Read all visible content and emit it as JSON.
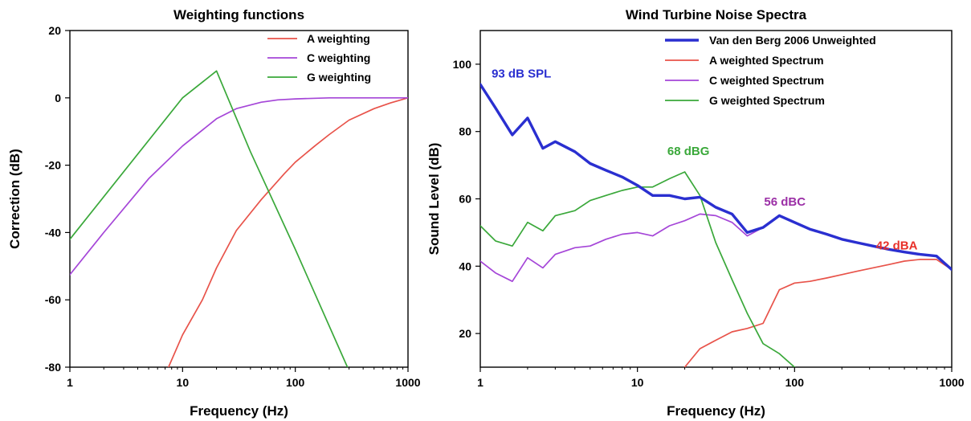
{
  "chart_data": [
    {
      "type": "line",
      "title": "Weighting functions",
      "xlabel": "Frequency (Hz)",
      "ylabel": "Correction (dB)",
      "xscale": "log",
      "xlim": [
        1,
        1000
      ],
      "ylim": [
        -80,
        20
      ],
      "xticks": [
        1,
        10,
        100,
        1000
      ],
      "xtick_labels": [
        "1",
        "10",
        "100",
        "1000"
      ],
      "yticks": [
        20,
        0,
        -20,
        -40,
        -60,
        -80
      ],
      "ytick_labels": [
        "20",
        "0",
        "-20",
        "-40",
        "-60",
        "-80"
      ],
      "legend_position": "top-right",
      "grid": false,
      "series": [
        {
          "name": "A weighting",
          "color": "#e8534a",
          "x": [
            7.5,
            10,
            15,
            20,
            30,
            50,
            80,
            100,
            150,
            200,
            300,
            500,
            700,
            1000
          ],
          "y": [
            -80,
            -70.4,
            -60,
            -50.5,
            -39.4,
            -30.2,
            -22.5,
            -19.1,
            -14.2,
            -10.9,
            -6.6,
            -3.2,
            -1.5,
            0
          ]
        },
        {
          "name": "C weighting",
          "color": "#a546d8",
          "x": [
            1,
            2,
            5,
            10,
            20,
            30,
            50,
            70,
            100,
            200,
            500,
            1000
          ],
          "y": [
            -52.5,
            -40,
            -24,
            -14.3,
            -6.2,
            -3.2,
            -1.3,
            -0.6,
            -0.3,
            0,
            0,
            0
          ]
        },
        {
          "name": "G weighting",
          "color": "#3aa83a",
          "x": [
            1,
            10,
            20,
            40,
            100,
            290
          ],
          "y": [
            -42,
            0,
            8,
            -16,
            -45,
            -80
          ]
        }
      ]
    },
    {
      "type": "line",
      "title": "Wind Turbine Noise Spectra",
      "xlabel": "Frequency (Hz)",
      "ylabel": "Sound Level (dB)",
      "xscale": "log",
      "xlim": [
        1,
        1000
      ],
      "ylim": [
        10,
        110
      ],
      "xticks": [
        1,
        10,
        100,
        1000
      ],
      "xtick_labels": [
        "1",
        "10",
        "100",
        "1000"
      ],
      "yticks": [
        100,
        80,
        60,
        40,
        20
      ],
      "ytick_labels": [
        "100",
        "80",
        "60",
        "40",
        "20"
      ],
      "legend_position": "top-right",
      "grid": false,
      "series": [
        {
          "name": "Van den Berg 2006 Unweighted",
          "color": "#2a2fd0",
          "x": [
            1,
            1.25,
            1.6,
            2,
            2.5,
            3,
            4,
            5,
            6.3,
            8,
            10,
            12.5,
            16,
            20,
            25,
            31.5,
            40,
            50,
            63,
            80,
            100,
            125,
            160,
            200,
            250,
            315,
            400,
            500,
            630,
            800,
            1000
          ],
          "y": [
            94,
            87,
            79,
            84,
            75,
            77,
            74,
            70.5,
            68.5,
            66.5,
            64,
            61,
            61,
            60,
            60.5,
            57.5,
            55.5,
            50,
            51.5,
            55,
            53,
            51,
            49.5,
            48,
            47,
            46,
            45,
            44.2,
            43.5,
            43,
            39
          ]
        },
        {
          "name": "A weighted Spectrum",
          "color": "#e8534a",
          "x": [
            20,
            25,
            31.5,
            40,
            50,
            63,
            80,
            100,
            125,
            160,
            200,
            250,
            315,
            400,
            500,
            630,
            800,
            1000
          ],
          "y": [
            10,
            15.5,
            18,
            20.5,
            21.5,
            23,
            33,
            35,
            35.5,
            36.5,
            37.5,
            38.5,
            39.5,
            40.5,
            41.5,
            42,
            42,
            39
          ]
        },
        {
          "name": "C weighted Spectrum",
          "color": "#a546d8",
          "x": [
            1,
            1.25,
            1.6,
            2,
            2.5,
            3,
            4,
            5,
            6.3,
            8,
            10,
            12.5,
            16,
            20,
            25,
            31.5,
            40,
            50,
            63,
            80,
            100,
            125,
            160,
            200,
            250,
            315,
            400,
            500,
            630,
            800,
            1000
          ],
          "y": [
            41.5,
            38,
            35.5,
            42.5,
            39.5,
            43.5,
            45.5,
            46,
            48,
            49.5,
            50,
            49,
            52,
            53.5,
            55.5,
            55,
            53,
            49,
            51.5,
            55,
            53,
            51,
            49.5,
            48,
            47,
            46,
            45,
            44.2,
            43.5,
            43,
            39
          ]
        },
        {
          "name": "G weighted Spectrum",
          "color": "#3aa83a",
          "x": [
            1,
            1.25,
            1.6,
            2,
            2.5,
            3,
            4,
            5,
            6.3,
            8,
            10,
            12.5,
            16,
            20,
            25,
            31.5,
            40,
            50,
            63,
            80,
            100
          ],
          "y": [
            52,
            47.5,
            46,
            53,
            50.5,
            55,
            56.5,
            59.5,
            61,
            62.5,
            63.5,
            63.5,
            66,
            68,
            61,
            47,
            36,
            26,
            17,
            14,
            10
          ]
        }
      ],
      "annotations": [
        {
          "text": "93 dB SPL",
          "x": 1.18,
          "y": 96,
          "color": "#2a2fd0"
        },
        {
          "text": "68 dBG",
          "x": 15.5,
          "y": 73,
          "color": "#3aa83a"
        },
        {
          "text": "56 dBC",
          "x": 64,
          "y": 58,
          "color": "#9b2fa6"
        },
        {
          "text": "42 dBA",
          "x": 330,
          "y": 45,
          "color": "#e8312a"
        }
      ]
    }
  ]
}
